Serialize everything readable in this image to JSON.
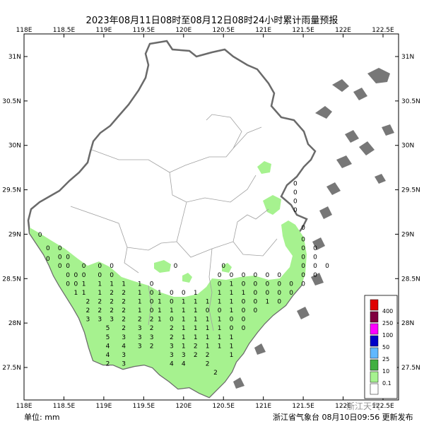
{
  "title": "2023年08月11日08时至08月12日08时24小时累计雨量预报",
  "unit_label": "单位: mm",
  "issuer_label": "浙江省气象台 08月10日09:56 更新发布",
  "watermark": "浙江天气",
  "map": {
    "lon_range": [
      118,
      122.5
    ],
    "lat_range": [
      27.5,
      31
    ],
    "top_lon_ticks": [
      "118E",
      "118.5E",
      "119E",
      "119.5E",
      "120E",
      "120.5E",
      "121E",
      "121.5E",
      "122E",
      "122.5E"
    ],
    "bottom_lon_ticks": [
      "118E",
      "118.5E",
      "119E",
      "119.5E",
      "120E",
      "120.5E",
      "121E",
      "121.5E",
      "122E",
      "122.5E"
    ],
    "left_lat_ticks": [
      "31N",
      "30.5N",
      "30N",
      "29.5N",
      "29N",
      "28.5N",
      "28N",
      "27.5N"
    ],
    "right_lat_ticks": [
      "31N",
      "30.5N",
      "30N",
      "29.5N",
      "29N",
      "28.5N",
      "28N",
      "27.5N"
    ]
  },
  "legend": [
    {
      "label": "400",
      "color": "#e00000"
    },
    {
      "label": "250",
      "color": "#800040"
    },
    {
      "label": "100",
      "color": "#ff00ff"
    },
    {
      "label": "50",
      "color": "#0000c8"
    },
    {
      "label": "25",
      "color": "#60b8ff"
    },
    {
      "label": "10",
      "color": "#40b040"
    },
    {
      "label": "0.1",
      "color": "#a6f28f"
    },
    {
      "label": "",
      "color": "#ffffff"
    }
  ],
  "rain_colors": {
    "light": "#a6f28f",
    "moderate": "#40b040"
  },
  "grid_values": [
    {
      "lon": 118.2,
      "lat": 28.97,
      "v": "0"
    },
    {
      "lon": 118.3,
      "lat": 28.82,
      "v": "0"
    },
    {
      "lon": 118.3,
      "lat": 28.7,
      "v": "0"
    },
    {
      "lon": 118.45,
      "lat": 28.82,
      "v": "0"
    },
    {
      "lon": 118.45,
      "lat": 28.72,
      "v": "0"
    },
    {
      "lon": 118.45,
      "lat": 28.62,
      "v": "0"
    },
    {
      "lon": 118.55,
      "lat": 28.72,
      "v": "0"
    },
    {
      "lon": 118.55,
      "lat": 28.62,
      "v": "0"
    },
    {
      "lon": 118.55,
      "lat": 28.52,
      "v": "0"
    },
    {
      "lon": 118.55,
      "lat": 28.42,
      "v": "0"
    },
    {
      "lon": 118.65,
      "lat": 28.52,
      "v": "0"
    },
    {
      "lon": 118.65,
      "lat": 28.42,
      "v": "0"
    },
    {
      "lon": 118.65,
      "lat": 28.32,
      "v": "1"
    },
    {
      "lon": 118.75,
      "lat": 28.62,
      "v": "0"
    },
    {
      "lon": 118.75,
      "lat": 28.52,
      "v": "0"
    },
    {
      "lon": 118.75,
      "lat": 28.42,
      "v": "1"
    },
    {
      "lon": 118.75,
      "lat": 28.32,
      "v": "1"
    },
    {
      "lon": 118.8,
      "lat": 28.22,
      "v": "2"
    },
    {
      "lon": 118.8,
      "lat": 28.12,
      "v": "2"
    },
    {
      "lon": 118.8,
      "lat": 28.02,
      "v": "3"
    },
    {
      "lon": 118.95,
      "lat": 28.62,
      "v": "0"
    },
    {
      "lon": 118.95,
      "lat": 28.52,
      "v": "0"
    },
    {
      "lon": 118.95,
      "lat": 28.42,
      "v": "1"
    },
    {
      "lon": 118.95,
      "lat": 28.32,
      "v": "1"
    },
    {
      "lon": 118.95,
      "lat": 28.22,
      "v": "2"
    },
    {
      "lon": 118.95,
      "lat": 28.12,
      "v": "2"
    },
    {
      "lon": 118.95,
      "lat": 28.02,
      "v": "3"
    },
    {
      "lon": 119.05,
      "lat": 27.92,
      "v": "5"
    },
    {
      "lon": 119.05,
      "lat": 27.82,
      "v": "5"
    },
    {
      "lon": 119.05,
      "lat": 27.72,
      "v": "4"
    },
    {
      "lon": 119.05,
      "lat": 27.62,
      "v": "4"
    },
    {
      "lon": 119.05,
      "lat": 27.52,
      "v": "2"
    },
    {
      "lon": 119.1,
      "lat": 28.62,
      "v": "0"
    },
    {
      "lon": 119.1,
      "lat": 28.52,
      "v": "0"
    },
    {
      "lon": 119.1,
      "lat": 28.42,
      "v": "1"
    },
    {
      "lon": 119.1,
      "lat": 28.32,
      "v": "2"
    },
    {
      "lon": 119.1,
      "lat": 28.22,
      "v": "2"
    },
    {
      "lon": 119.1,
      "lat": 28.12,
      "v": "2"
    },
    {
      "lon": 119.1,
      "lat": 28.02,
      "v": "3"
    },
    {
      "lon": 119.25,
      "lat": 28.42,
      "v": "1"
    },
    {
      "lon": 119.25,
      "lat": 28.32,
      "v": "2"
    },
    {
      "lon": 119.25,
      "lat": 28.22,
      "v": "2"
    },
    {
      "lon": 119.25,
      "lat": 28.12,
      "v": "2"
    },
    {
      "lon": 119.25,
      "lat": 28.02,
      "v": "2"
    },
    {
      "lon": 119.25,
      "lat": 27.92,
      "v": "2"
    },
    {
      "lon": 119.25,
      "lat": 27.82,
      "v": "3"
    },
    {
      "lon": 119.25,
      "lat": 27.72,
      "v": "4"
    },
    {
      "lon": 119.25,
      "lat": 27.62,
      "v": "3"
    },
    {
      "lon": 119.25,
      "lat": 27.52,
      "v": "3"
    },
    {
      "lon": 119.45,
      "lat": 28.42,
      "v": "1"
    },
    {
      "lon": 119.45,
      "lat": 28.32,
      "v": "1"
    },
    {
      "lon": 119.45,
      "lat": 28.22,
      "v": "1"
    },
    {
      "lon": 119.45,
      "lat": 28.12,
      "v": "1"
    },
    {
      "lon": 119.45,
      "lat": 28.02,
      "v": "2"
    },
    {
      "lon": 119.45,
      "lat": 27.92,
      "v": "3"
    },
    {
      "lon": 119.45,
      "lat": 27.82,
      "v": "3"
    },
    {
      "lon": 119.45,
      "lat": 27.72,
      "v": "3"
    },
    {
      "lon": 119.6,
      "lat": 28.42,
      "v": "0"
    },
    {
      "lon": 119.6,
      "lat": 28.32,
      "v": "0"
    },
    {
      "lon": 119.6,
      "lat": 28.22,
      "v": "0"
    },
    {
      "lon": 119.6,
      "lat": 28.12,
      "v": "0"
    },
    {
      "lon": 119.6,
      "lat": 28.02,
      "v": "2"
    },
    {
      "lon": 119.6,
      "lat": 27.92,
      "v": "2"
    },
    {
      "lon": 119.6,
      "lat": 27.82,
      "v": "3"
    },
    {
      "lon": 119.6,
      "lat": 27.72,
      "v": "2"
    },
    {
      "lon": 119.7,
      "lat": 28.32,
      "v": "1"
    },
    {
      "lon": 119.7,
      "lat": 28.22,
      "v": "1"
    },
    {
      "lon": 119.7,
      "lat": 28.12,
      "v": "1"
    },
    {
      "lon": 119.7,
      "lat": 28.02,
      "v": "1"
    },
    {
      "lon": 119.85,
      "lat": 28.32,
      "v": "0"
    },
    {
      "lon": 119.85,
      "lat": 28.22,
      "v": "0"
    },
    {
      "lon": 119.85,
      "lat": 28.12,
      "v": "1"
    },
    {
      "lon": 119.85,
      "lat": 28.02,
      "v": "0"
    },
    {
      "lon": 119.85,
      "lat": 27.92,
      "v": "2"
    },
    {
      "lon": 119.85,
      "lat": 27.82,
      "v": "2"
    },
    {
      "lon": 119.85,
      "lat": 27.72,
      "v": "3"
    },
    {
      "lon": 119.85,
      "lat": 27.62,
      "v": "3"
    },
    {
      "lon": 119.85,
      "lat": 27.52,
      "v": "4"
    },
    {
      "lon": 120.0,
      "lat": 28.32,
      "v": "0"
    },
    {
      "lon": 120.0,
      "lat": 28.22,
      "v": "1"
    },
    {
      "lon": 120.0,
      "lat": 28.12,
      "v": "1"
    },
    {
      "lon": 120.0,
      "lat": 28.02,
      "v": "1"
    },
    {
      "lon": 120.0,
      "lat": 27.92,
      "v": "1"
    },
    {
      "lon": 120.0,
      "lat": 27.82,
      "v": "1"
    },
    {
      "lon": 120.0,
      "lat": 27.72,
      "v": "1"
    },
    {
      "lon": 120.0,
      "lat": 27.62,
      "v": "3"
    },
    {
      "lon": 120.0,
      "lat": 27.52,
      "v": "4"
    },
    {
      "lon": 120.15,
      "lat": 28.32,
      "v": "1"
    },
    {
      "lon": 120.15,
      "lat": 28.22,
      "v": "1"
    },
    {
      "lon": 120.15,
      "lat": 28.12,
      "v": "1"
    },
    {
      "lon": 120.15,
      "lat": 28.02,
      "v": "1"
    },
    {
      "lon": 120.15,
      "lat": 27.92,
      "v": "1"
    },
    {
      "lon": 120.15,
      "lat": 27.82,
      "v": "1"
    },
    {
      "lon": 120.15,
      "lat": 27.72,
      "v": "2"
    },
    {
      "lon": 120.15,
      "lat": 27.62,
      "v": "2"
    },
    {
      "lon": 120.3,
      "lat": 28.22,
      "v": "1"
    },
    {
      "lon": 120.3,
      "lat": 28.12,
      "v": "0"
    },
    {
      "lon": 120.3,
      "lat": 28.02,
      "v": "1"
    },
    {
      "lon": 120.3,
      "lat": 27.92,
      "v": "1"
    },
    {
      "lon": 120.3,
      "lat": 27.82,
      "v": "1"
    },
    {
      "lon": 120.3,
      "lat": 27.72,
      "v": "1"
    },
    {
      "lon": 120.3,
      "lat": 27.62,
      "v": "2"
    },
    {
      "lon": 120.3,
      "lat": 27.52,
      "v": "2"
    },
    {
      "lon": 120.4,
      "lat": 27.42,
      "v": "2"
    },
    {
      "lon": 120.45,
      "lat": 28.52,
      "v": "0"
    },
    {
      "lon": 120.45,
      "lat": 28.42,
      "v": "0"
    },
    {
      "lon": 120.45,
      "lat": 28.32,
      "v": "1"
    },
    {
      "lon": 120.45,
      "lat": 28.22,
      "v": "1"
    },
    {
      "lon": 120.45,
      "lat": 28.12,
      "v": "0"
    },
    {
      "lon": 120.45,
      "lat": 28.02,
      "v": "1"
    },
    {
      "lon": 120.45,
      "lat": 27.92,
      "v": "1"
    },
    {
      "lon": 120.45,
      "lat": 27.82,
      "v": "1"
    },
    {
      "lon": 120.45,
      "lat": 27.72,
      "v": "1"
    },
    {
      "lon": 120.6,
      "lat": 28.52,
      "v": "0"
    },
    {
      "lon": 120.6,
      "lat": 28.42,
      "v": "1"
    },
    {
      "lon": 120.6,
      "lat": 28.32,
      "v": "1"
    },
    {
      "lon": 120.6,
      "lat": 28.22,
      "v": "1"
    },
    {
      "lon": 120.6,
      "lat": 28.12,
      "v": "1"
    },
    {
      "lon": 120.6,
      "lat": 28.02,
      "v": "0"
    },
    {
      "lon": 120.6,
      "lat": 27.92,
      "v": "0"
    },
    {
      "lon": 120.6,
      "lat": 27.82,
      "v": "1"
    },
    {
      "lon": 120.6,
      "lat": 27.72,
      "v": "1"
    },
    {
      "lon": 120.6,
      "lat": 27.62,
      "v": "1"
    },
    {
      "lon": 120.75,
      "lat": 28.52,
      "v": "0"
    },
    {
      "lon": 120.75,
      "lat": 28.42,
      "v": "0"
    },
    {
      "lon": 120.75,
      "lat": 28.32,
      "v": "1"
    },
    {
      "lon": 120.75,
      "lat": 28.22,
      "v": "0"
    },
    {
      "lon": 120.75,
      "lat": 28.12,
      "v": "0"
    },
    {
      "lon": 120.75,
      "lat": 28.02,
      "v": "0"
    },
    {
      "lon": 120.75,
      "lat": 27.92,
      "v": "0"
    },
    {
      "lon": 120.9,
      "lat": 28.52,
      "v": "0"
    },
    {
      "lon": 120.9,
      "lat": 28.42,
      "v": "0"
    },
    {
      "lon": 120.9,
      "lat": 28.32,
      "v": "0"
    },
    {
      "lon": 120.9,
      "lat": 28.22,
      "v": "0"
    },
    {
      "lon": 120.9,
      "lat": 28.12,
      "v": "0"
    },
    {
      "lon": 121.05,
      "lat": 28.52,
      "v": "0"
    },
    {
      "lon": 121.05,
      "lat": 28.42,
      "v": "0"
    },
    {
      "lon": 121.05,
      "lat": 28.32,
      "v": "0"
    },
    {
      "lon": 121.05,
      "lat": 28.22,
      "v": "1"
    },
    {
      "lon": 121.2,
      "lat": 28.52,
      "v": "0"
    },
    {
      "lon": 121.2,
      "lat": 28.42,
      "v": "0"
    },
    {
      "lon": 121.2,
      "lat": 28.32,
      "v": "0"
    },
    {
      "lon": 121.2,
      "lat": 28.22,
      "v": "0"
    },
    {
      "lon": 121.35,
      "lat": 28.42,
      "v": "0"
    },
    {
      "lon": 121.35,
      "lat": 28.32,
      "v": "0"
    },
    {
      "lon": 121.4,
      "lat": 29.55,
      "v": "0"
    },
    {
      "lon": 121.4,
      "lat": 29.45,
      "v": "0"
    },
    {
      "lon": 121.4,
      "lat": 29.35,
      "v": "0"
    },
    {
      "lon": 121.4,
      "lat": 29.25,
      "v": "0"
    },
    {
      "lon": 121.5,
      "lat": 29.05,
      "v": "0"
    },
    {
      "lon": 121.5,
      "lat": 28.92,
      "v": "0"
    },
    {
      "lon": 121.5,
      "lat": 28.82,
      "v": "0"
    },
    {
      "lon": 121.5,
      "lat": 28.72,
      "v": "0"
    },
    {
      "lon": 121.5,
      "lat": 28.62,
      "v": "0"
    },
    {
      "lon": 121.5,
      "lat": 28.52,
      "v": "0"
    },
    {
      "lon": 121.5,
      "lat": 28.42,
      "v": "0"
    },
    {
      "lon": 121.65,
      "lat": 28.82,
      "v": "0"
    },
    {
      "lon": 121.65,
      "lat": 28.72,
      "v": "0"
    },
    {
      "lon": 121.65,
      "lat": 28.62,
      "v": "0"
    },
    {
      "lon": 121.65,
      "lat": 28.52,
      "v": "0"
    },
    {
      "lon": 121.8,
      "lat": 28.62,
      "v": "0"
    },
    {
      "lon": 119.9,
      "lat": 28.62,
      "v": "0"
    },
    {
      "lon": 120.5,
      "lat": 28.62,
      "v": "0"
    }
  ]
}
